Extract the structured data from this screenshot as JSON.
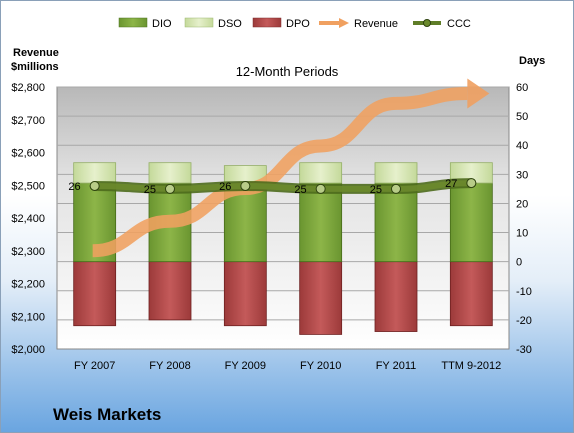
{
  "company": "Weis Markets",
  "chart_data": {
    "type": "bar",
    "title": "12-Month Periods",
    "categories": [
      "FY 2007",
      "FY 2008",
      "FY 2009",
      "FY 2010",
      "FY 2011",
      "TTM 9-2012"
    ],
    "left_axis": {
      "label_line1": "Revenue",
      "label_line2": "$millions",
      "ylim": [
        2000,
        2800
      ],
      "ticks": [
        "$2,000",
        "$2,100",
        "$2,200",
        "$2,300",
        "$2,400",
        "$2,500",
        "$2,600",
        "$2,700",
        "$2,800"
      ]
    },
    "right_axis": {
      "label": "Days",
      "ylim": [
        -30,
        60
      ],
      "ticks": [
        "-30",
        "-20",
        "-10",
        "0",
        "10",
        "20",
        "30",
        "40",
        "50",
        "60"
      ]
    },
    "series": [
      {
        "name": "DIO",
        "axis": "right",
        "kind": "stacked-bar",
        "color": "#77a33a",
        "values": [
          27,
          27,
          27,
          27,
          27,
          27
        ]
      },
      {
        "name": "DSO",
        "axis": "right",
        "kind": "stacked-bar",
        "color": "#d6e6b0",
        "values": [
          7,
          7,
          6,
          7,
          7,
          7
        ]
      },
      {
        "name": "DPO",
        "axis": "right",
        "kind": "negative-bar",
        "color": "#b04848",
        "values": [
          -22,
          -20,
          -22,
          -25,
          -24,
          -22
        ]
      },
      {
        "name": "Revenue",
        "axis": "left",
        "kind": "arrow",
        "color": "#f0a060",
        "values": [
          2300,
          2390,
          2490,
          2620,
          2750,
          2780
        ]
      },
      {
        "name": "CCC",
        "axis": "right",
        "kind": "line",
        "color": "#6b8a2c",
        "values": [
          26,
          25,
          26,
          25,
          25,
          27
        ],
        "labels": [
          "26",
          "25",
          "26",
          "25",
          "25",
          "27"
        ]
      }
    ],
    "legend_position": "top",
    "grid": true
  }
}
